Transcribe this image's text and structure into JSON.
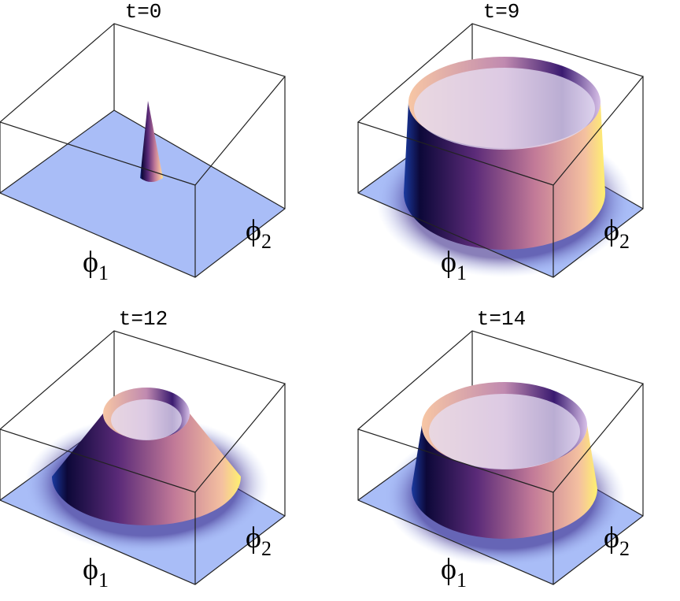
{
  "panels": [
    {
      "title": "t=0",
      "x_label": {
        "symbol": "ϕ",
        "subscript": "1"
      },
      "y_label": {
        "symbol": "ϕ",
        "subscript": "2"
      }
    },
    {
      "title": "t=9",
      "x_label": {
        "symbol": "ϕ",
        "subscript": "1"
      },
      "y_label": {
        "symbol": "ϕ",
        "subscript": "2"
      }
    },
    {
      "title": "t=12",
      "x_label": {
        "symbol": "ϕ",
        "subscript": "1"
      },
      "y_label": {
        "symbol": "ϕ",
        "subscript": "2"
      }
    },
    {
      "title": "t=14",
      "x_label": {
        "symbol": "ϕ",
        "subscript": "1"
      },
      "y_label": {
        "symbol": "ϕ",
        "subscript": "2"
      }
    }
  ]
}
